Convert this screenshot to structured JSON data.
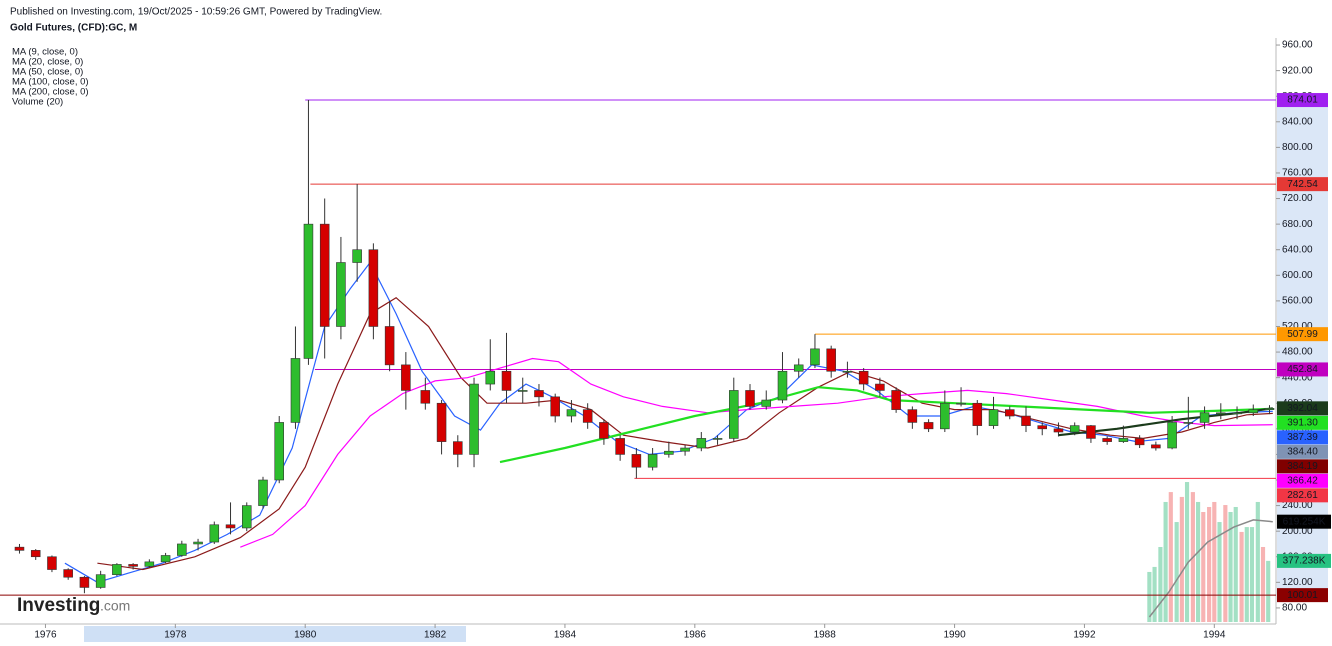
{
  "header": {
    "published": "Published on Investing.com, 19/Oct/2025 - 10:59:26 GMT, Powered by TradingView.",
    "logo": {
      "brand": "Investing",
      "suffix": ".com"
    }
  },
  "chart_data": {
    "type": "candlestick",
    "title": "Gold Futures, (CFD):GC, M",
    "xlim": [
      1975.3,
      1994.95
    ],
    "xticks": [
      1976,
      1978,
      1980,
      1982,
      1984,
      1986,
      1988,
      1990,
      1992,
      1994
    ],
    "ylim": [
      58,
      971
    ],
    "yticks": [
      {
        "value": 80,
        "label": "80.00"
      },
      {
        "value": 120,
        "label": "120.00"
      },
      {
        "value": 160,
        "label": "160.00"
      },
      {
        "value": 200,
        "label": "200.00"
      },
      {
        "value": 240,
        "label": "240.00"
      },
      {
        "value": 280,
        "label": "280.00"
      },
      {
        "value": 320,
        "label": "320.00"
      },
      {
        "value": 360,
        "label": "360.00"
      },
      {
        "value": 400,
        "label": "400.00"
      },
      {
        "value": 440,
        "label": "440.00"
      },
      {
        "value": 480,
        "label": "480.00"
      },
      {
        "value": 520,
        "label": "520.00"
      },
      {
        "value": 560,
        "label": "560.00"
      },
      {
        "value": 600,
        "label": "600.00"
      },
      {
        "value": 640,
        "label": "640.00"
      },
      {
        "value": 680,
        "label": "680.00"
      },
      {
        "value": 720,
        "label": "720.00"
      },
      {
        "value": 760,
        "label": "760.00"
      },
      {
        "value": 800,
        "label": "800.00"
      },
      {
        "value": 840,
        "label": "840.00"
      },
      {
        "value": 880,
        "label": "880.00"
      },
      {
        "value": 920,
        "label": "920.00"
      },
      {
        "value": 960,
        "label": "960.00"
      }
    ],
    "up_color": "#2dbd2d",
    "down_color": "#d50000",
    "candles": {
      "x": [
        1975.6,
        1975.85,
        1976.1,
        1976.35,
        1976.6,
        1976.85,
        1977.1,
        1977.35,
        1977.6,
        1977.85,
        1978.1,
        1978.35,
        1978.6,
        1978.85,
        1979.1,
        1979.35,
        1979.6,
        1979.85,
        1980.05,
        1980.3,
        1980.55,
        1980.8,
        1981.05,
        1981.3,
        1981.55,
        1981.85,
        1982.1,
        1982.35,
        1982.6,
        1982.85,
        1983.1,
        1983.35,
        1983.6,
        1983.85,
        1984.1,
        1984.35,
        1984.6,
        1984.85,
        1985.1,
        1985.35,
        1985.6,
        1985.85,
        1986.1,
        1986.35,
        1986.6,
        1986.85,
        1987.1,
        1987.35,
        1987.6,
        1987.85,
        1988.1,
        1988.35,
        1988.6,
        1988.85,
        1989.1,
        1989.35,
        1989.6,
        1989.85,
        1990.1,
        1990.35,
        1990.6,
        1990.85,
        1991.1,
        1991.35,
        1991.6,
        1991.85,
        1992.1,
        1992.35,
        1992.6,
        1992.85,
        1993.1,
        1993.35,
        1993.6,
        1993.85,
        1994.1,
        1994.35,
        1994.6,
        1994.85
      ],
      "open": [
        175,
        170,
        160,
        140,
        128,
        112,
        132,
        148,
        145,
        152,
        162,
        180,
        183,
        210,
        205,
        240,
        280,
        370,
        470,
        680,
        520,
        620,
        640,
        520,
        460,
        420,
        400,
        340,
        320,
        430,
        450,
        420,
        420,
        410,
        380,
        390,
        370,
        345,
        320,
        300,
        320,
        325,
        330,
        345,
        345,
        420,
        395,
        405,
        450,
        460,
        485,
        450,
        450,
        430,
        420,
        390,
        370,
        360,
        400,
        400,
        365,
        390,
        380,
        365,
        360,
        355,
        365,
        345,
        340,
        345,
        335,
        330,
        370,
        370,
        385,
        385,
        385,
        390
      ],
      "high": [
        180,
        172,
        162,
        142,
        130,
        138,
        150,
        150,
        156,
        166,
        185,
        188,
        215,
        245,
        245,
        285,
        380,
        520,
        874.01,
        720,
        660,
        742.54,
        650,
        560,
        480,
        440,
        405,
        350,
        440,
        500,
        510,
        440,
        430,
        415,
        405,
        400,
        375,
        350,
        330,
        330,
        340,
        335,
        355,
        350,
        440,
        430,
        420,
        480,
        470,
        507.99,
        490,
        465,
        455,
        440,
        425,
        395,
        375,
        420,
        425,
        405,
        410,
        395,
        395,
        370,
        370,
        370,
        366,
        348,
        365,
        350,
        340,
        380,
        410,
        395,
        400,
        395,
        398,
        397
      ],
      "low": [
        165,
        155,
        136,
        124,
        103,
        110,
        130,
        140,
        143,
        150,
        160,
        170,
        180,
        195,
        200,
        235,
        275,
        360,
        460,
        470,
        500,
        590,
        500,
        450,
        390,
        390,
        320,
        300,
        300,
        420,
        400,
        400,
        395,
        370,
        370,
        360,
        335,
        310,
        282.61,
        295,
        315,
        318,
        325,
        335,
        340,
        390,
        390,
        400,
        440,
        455,
        440,
        440,
        420,
        410,
        385,
        360,
        355,
        355,
        395,
        350,
        360,
        375,
        355,
        350,
        348,
        350,
        338,
        335,
        338,
        330,
        326,
        328,
        360,
        360,
        375,
        375,
        380,
        383
      ],
      "close": [
        170,
        160,
        140,
        128,
        112,
        132,
        148,
        145,
        152,
        162,
        180,
        183,
        210,
        205,
        240,
        280,
        370,
        470,
        680,
        520,
        620,
        640,
        520,
        460,
        420,
        400,
        340,
        320,
        430,
        450,
        420,
        420,
        410,
        380,
        390,
        370,
        345,
        320,
        300,
        320,
        325,
        330,
        345,
        345,
        420,
        395,
        405,
        450,
        460,
        485,
        450,
        450,
        430,
        420,
        390,
        370,
        360,
        400,
        400,
        365,
        390,
        380,
        365,
        360,
        355,
        365,
        345,
        340,
        345,
        335,
        330,
        370,
        370,
        385,
        385,
        385,
        390,
        392
      ]
    },
    "series": [
      {
        "name": "MA (9, close, 0)",
        "color": "#2962ff",
        "x": [
          1976.3,
          1976.8,
          1977.3,
          1977.8,
          1978.3,
          1978.8,
          1979.3,
          1979.8,
          1980.3,
          1980.7,
          1981.0,
          1981.4,
          1981.8,
          1982.3,
          1982.7,
          1983.0,
          1983.4,
          1983.8,
          1984.3,
          1984.8,
          1985.3,
          1985.8,
          1986.3,
          1986.8,
          1987.3,
          1987.8,
          1988.3,
          1988.8,
          1989.3,
          1989.8,
          1990.3,
          1990.8,
          1991.3,
          1991.8,
          1992.3,
          1992.8,
          1993.3,
          1993.8,
          1994.3,
          1994.9
        ],
        "values": [
          150,
          120,
          135,
          150,
          170,
          195,
          225,
          330,
          520,
          580,
          620,
          540,
          450,
          380,
          358,
          400,
          430,
          410,
          380,
          340,
          320,
          325,
          345,
          390,
          410,
          460,
          450,
          420,
          380,
          380,
          395,
          385,
          370,
          355,
          350,
          340,
          345,
          380,
          385,
          387.39
        ]
      },
      {
        "name": "MA (20, close, 0)",
        "color": "#8b1a1a",
        "x": [
          1976.8,
          1977.5,
          1978.3,
          1979.0,
          1979.6,
          1980.0,
          1980.5,
          1981.0,
          1981.4,
          1981.9,
          1982.4,
          1982.8,
          1983.4,
          1983.9,
          1984.4,
          1984.9,
          1985.5,
          1986.2,
          1986.8,
          1987.3,
          1987.9,
          1988.4,
          1988.9,
          1989.5,
          1990.0,
          1990.6,
          1991.2,
          1991.8,
          1992.4,
          1992.9,
          1993.5,
          1994.0,
          1994.5,
          1994.9
        ],
        "values": [
          150,
          140,
          160,
          190,
          235,
          300,
          430,
          540,
          565,
          520,
          440,
          400,
          400,
          405,
          390,
          350,
          340,
          330,
          345,
          385,
          425,
          450,
          435,
          400,
          390,
          390,
          375,
          360,
          350,
          345,
          355,
          370,
          382,
          384.19
        ]
      },
      {
        "name": "MA (50, close, 0)",
        "color": "#ff00ff",
        "x": [
          1979.0,
          1979.5,
          1980.0,
          1980.5,
          1981.0,
          1981.5,
          1982.0,
          1982.5,
          1983.0,
          1983.5,
          1983.9,
          1984.4,
          1984.9,
          1985.5,
          1986.2,
          1986.8,
          1987.5,
          1988.2,
          1988.9,
          1989.5,
          1990.2,
          1990.8,
          1991.5,
          1992.2,
          1992.9,
          1993.5,
          1994.0,
          1994.9
        ],
        "values": [
          175,
          195,
          240,
          320,
          380,
          415,
          435,
          440,
          455,
          470,
          465,
          430,
          410,
          395,
          385,
          390,
          395,
          400,
          410,
          415,
          420,
          415,
          405,
          395,
          380,
          370,
          365,
          366.42
        ]
      },
      {
        "name": "MA (100, close, 0)",
        "color": "#22e022",
        "x": [
          1983.0,
          1984.0,
          1985.0,
          1986.0,
          1987.0,
          1987.9,
          1988.5,
          1989.0,
          1990.0,
          1991.0,
          1992.0,
          1993.0,
          1994.0,
          1994.9
        ],
        "values": [
          308,
          330,
          355,
          380,
          400,
          425,
          420,
          405,
          400,
          395,
          390,
          385,
          388,
          391.3
        ]
      },
      {
        "name": "MA (200, close, 0)",
        "color": "#1b3b1b",
        "x": [
          1991.6,
          1992.5,
          1993.5,
          1994.4,
          1994.9
        ],
        "values": [
          350,
          360,
          375,
          385,
          392.04
        ]
      }
    ],
    "levels": [
      {
        "value": 874.01,
        "start": 1980.0,
        "color": "#a020f0"
      },
      {
        "value": 742.54,
        "start": 1980.08,
        "color": "#e53935"
      },
      {
        "value": 507.99,
        "start": 1987.85,
        "color": "#ff9800"
      },
      {
        "value": 452.84,
        "start": 1980.15,
        "color": "#c000c0"
      },
      {
        "value": 282.61,
        "start": 1985.07,
        "color": "#f23645"
      },
      {
        "value": 100.01,
        "start": 1975.3,
        "color": "#8b0000"
      }
    ],
    "price_labels": [
      {
        "value": 874.01,
        "label": "874.01",
        "color": "#a020f0"
      },
      {
        "value": 742.54,
        "label": "742.54",
        "color": "#e53935"
      },
      {
        "value": 507.99,
        "label": "507.99",
        "color": "#ff9800"
      },
      {
        "value": 452.84,
        "label": "452.84",
        "color": "#c000c0"
      },
      {
        "value": 392.04,
        "label": "392.04",
        "color": "#1b3b1b"
      },
      {
        "value": 391.3,
        "label": "391.30",
        "color": "#22e022"
      },
      {
        "value": 387.39,
        "label": "387.39",
        "color": "#2962ff"
      },
      {
        "value": 384.4,
        "label": "384.40",
        "color": "#7f93b5"
      },
      {
        "value": 384.19,
        "label": "384.19",
        "color": "#800000"
      },
      {
        "value": 366.42,
        "label": "366.42",
        "color": "#ff00ff"
      },
      {
        "value": 282.61,
        "label": "282.61",
        "color": "#f23645"
      },
      {
        "value": 100.01,
        "label": "100.01",
        "color": "#8b0000"
      }
    ],
    "volume": {
      "name": "Volume (20)",
      "vlim": [
        0,
        1000000
      ],
      "x": [
        1993.0,
        1993.08,
        1993.17,
        1993.25,
        1993.33,
        1993.42,
        1993.5,
        1993.58,
        1993.67,
        1993.75,
        1993.83,
        1993.92,
        1994.0,
        1994.08,
        1994.17,
        1994.25,
        1994.33,
        1994.42,
        1994.5,
        1994.58,
        1994.67,
        1994.75,
        1994.83
      ],
      "values": [
        309000,
        340000,
        463000,
        741000,
        802000,
        617000,
        772000,
        864000,
        802000,
        741000,
        679000,
        710000,
        741000,
        617000,
        722000,
        679000,
        710000,
        556000,
        586000,
        586000,
        741000,
        463000,
        377238
      ],
      "colors": [
        "#a3e0c4",
        "#a3e0c4",
        "#a3e0c4",
        "#a3e0c4",
        "#f7b3b3",
        "#a3e0c4",
        "#f7b3b3",
        "#a3e0c4",
        "#f7b3b3",
        "#a3e0c4",
        "#f7b3b3",
        "#f7b3b3",
        "#f7b3b3",
        "#a3e0c4",
        "#f7b3b3",
        "#a3e0c4",
        "#a3e0c4",
        "#f7b3b3",
        "#a3e0c4",
        "#a3e0c4",
        "#a3e0c4",
        "#f7b3b3",
        "#a3e0c4"
      ],
      "ma": {
        "color": "#8a8a8a",
        "x": [
          1993.0,
          1993.3,
          1993.6,
          1993.9,
          1994.3,
          1994.6,
          1994.9
        ],
        "values": [
          31000,
          185000,
          370000,
          494000,
          586000,
          630000,
          619254
        ]
      },
      "labels": [
        {
          "value": 619254,
          "label": "619.254K",
          "color": "#000000"
        },
        {
          "value": 377238,
          "label": "377.238K",
          "color": "#26c281"
        }
      ]
    }
  }
}
